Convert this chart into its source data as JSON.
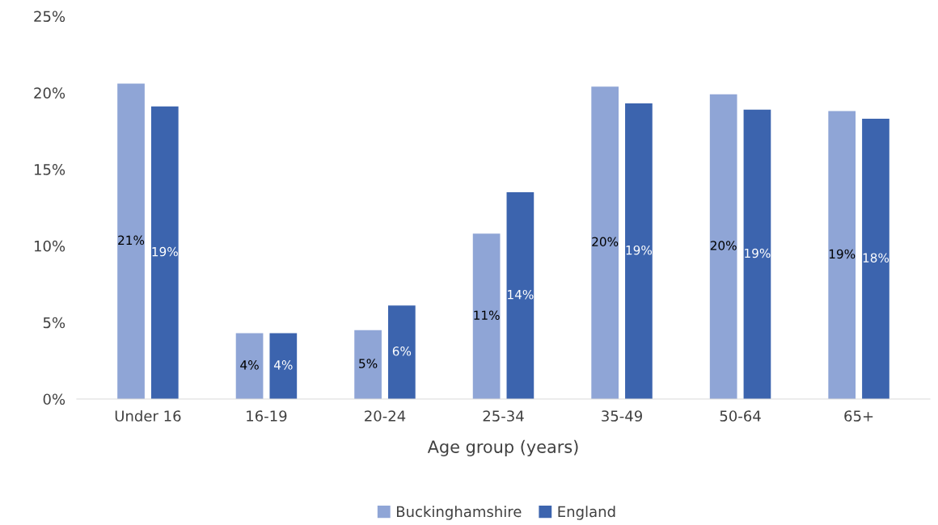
{
  "chart_data": {
    "type": "bar",
    "xlabel": "Age group (years)",
    "categories": [
      "Under 16",
      "16-19",
      "20-24",
      "25-34",
      "35-49",
      "50-64",
      "65+"
    ],
    "series": [
      {
        "name": "Buckinghamshire",
        "color": "#8fa5d6",
        "values": [
          20.6,
          4.3,
          4.5,
          10.8,
          20.4,
          19.9,
          18.8
        ],
        "value_labels": [
          "21%",
          "4%",
          "5%",
          "11%",
          "20%",
          "20%",
          "19%"
        ]
      },
      {
        "name": "England",
        "color": "#3c64ae",
        "values": [
          19.1,
          4.3,
          6.1,
          13.5,
          19.3,
          18.9,
          18.3
        ],
        "value_labels": [
          "19%",
          "4%",
          "6%",
          "14%",
          "19%",
          "19%",
          "18%"
        ]
      }
    ],
    "ylim": [
      0,
      25
    ],
    "yticks": [
      {
        "value": 0,
        "label": "0%"
      },
      {
        "value": 5,
        "label": "5%"
      },
      {
        "value": 10,
        "label": "10%"
      },
      {
        "value": 15,
        "label": "15%"
      },
      {
        "value": 20,
        "label": "20%"
      },
      {
        "value": 25,
        "label": "25%"
      }
    ],
    "grid": false,
    "legend": "bottom"
  }
}
